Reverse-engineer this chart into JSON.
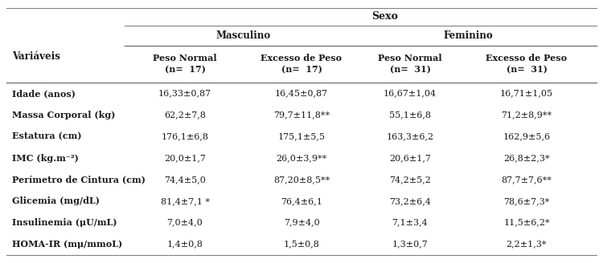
{
  "title": "Sexo",
  "col_header_1": "Masculino",
  "col_header_2": "Feminino",
  "subheaders": [
    "Peso Normal\n(n=  17)",
    "Excesso de Peso\n(n=  17)",
    "Peso Normal\n(n=  31)",
    "Excesso de Peso\n(n=  31)"
  ],
  "row_label_var": "Variáveis",
  "row_labels": [
    "Idade (anos)",
    "Massa Corporal (kg)",
    "Estatura (cm)",
    "IMC (kg.m⁻²)",
    "Perímetro de Cintura (cm)",
    "Glicemia (mg/dL)",
    "Insulinemia (μU/mL)",
    "HOMA-IR (mμ/mmoL)"
  ],
  "data": [
    [
      "16,33±0,87",
      "16,45±0,87",
      "16,67±1,04",
      "16,71±1,05"
    ],
    [
      "62,2±7,8",
      "79,7±11,8**",
      "55,1±6,8",
      "71,2±8,9**"
    ],
    [
      "176,1±6,8",
      "175,1±5,5",
      "163,3±6,2",
      "162,9±5,6"
    ],
    [
      "20,0±1,7",
      "26,0±3,9**",
      "20,6±1,7",
      "26,8±2,3*"
    ],
    [
      "74,4±5,0",
      "87,20±8,5**",
      "74,2±5,2",
      "87,7±7,6**"
    ],
    [
      "81,4±7,1 *",
      "76,4±6,1",
      "73,2±6,4",
      "78,6±7,3*"
    ],
    [
      "7,0±4,0",
      "7,9±4,0",
      "7,1±3,4",
      "11,5±6,2*"
    ],
    [
      "1,4±0,8",
      "1,5±0,8",
      "1,3±0,7",
      "2,2±1,3*"
    ]
  ],
  "bg_color": "#ffffff",
  "text_color": "#1a1a1a",
  "line_color": "#777777",
  "font_size": 8.0,
  "header_font_size": 8.5,
  "sexo_font_size": 9.0
}
